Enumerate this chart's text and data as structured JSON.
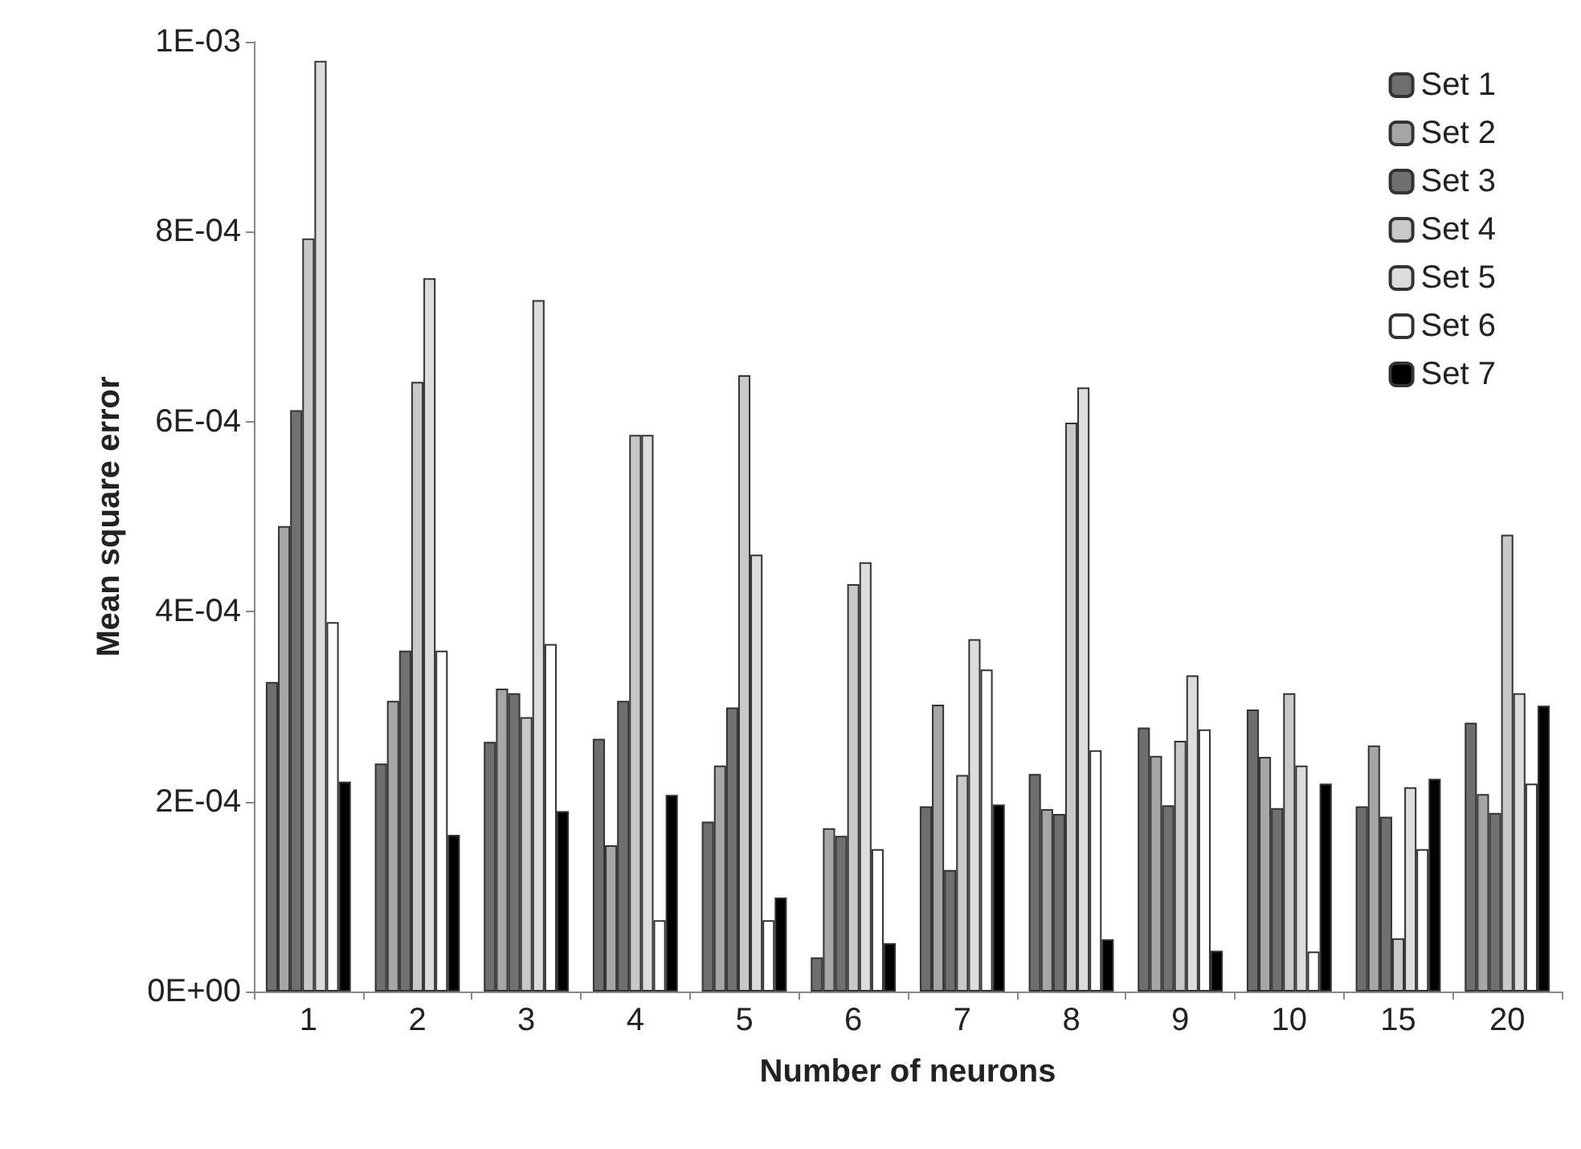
{
  "chart_data": {
    "type": "bar",
    "xlabel": "Number of neurons",
    "ylabel": "Mean square error",
    "categories": [
      "1",
      "2",
      "3",
      "4",
      "5",
      "6",
      "7",
      "8",
      "9",
      "10",
      "15",
      "20"
    ],
    "series": [
      {
        "name": "Set 1",
        "color": "#6e6e6e",
        "values": [
          0.000326,
          0.00024,
          0.000263,
          0.000266,
          0.000179,
          3.6e-05,
          0.000195,
          0.000229,
          0.000278,
          0.000297,
          0.000195,
          0.000283
        ]
      },
      {
        "name": "Set 2",
        "color": "#a6a6a6",
        "values": [
          0.00049,
          0.000306,
          0.000319,
          0.000154,
          0.000238,
          0.000172,
          0.000302,
          0.000192,
          0.000248,
          0.000247,
          0.000259,
          0.000208
        ]
      },
      {
        "name": "Set 3",
        "color": "#707070",
        "values": [
          0.000612,
          0.000359,
          0.000314,
          0.000306,
          0.000299,
          0.000164,
          0.000128,
          0.000187,
          0.000196,
          0.000193,
          0.000184,
          0.000188
        ]
      },
      {
        "name": "Set 4",
        "color": "#c8c8c8",
        "values": [
          0.000793,
          0.000642,
          0.000289,
          0.000586,
          0.000649,
          0.000429,
          0.000228,
          0.000599,
          0.000264,
          0.000314,
          5.6e-05,
          0.000481
        ]
      },
      {
        "name": "Set 5",
        "color": "#dcdcdc",
        "values": [
          0.00098,
          0.000751,
          0.000728,
          0.000586,
          0.00046,
          0.000452,
          0.000371,
          0.000636,
          0.000333,
          0.000238,
          0.000215,
          0.000314
        ]
      },
      {
        "name": "Set 6",
        "color": "#ffffff",
        "values": [
          0.000389,
          0.000359,
          0.000366,
          7.5e-05,
          7.5e-05,
          0.00015,
          0.000339,
          0.000254,
          0.000276,
          4.2e-05,
          0.00015,
          0.000219
        ]
      },
      {
        "name": "Set 7",
        "color": "#000000",
        "values": [
          0.000221,
          0.000165,
          0.00019,
          0.000207,
          9.9e-05,
          5.1e-05,
          0.000197,
          5.5e-05,
          4.3e-05,
          0.000219,
          0.000224,
          0.000301
        ]
      }
    ],
    "ylim": [
      0,
      0.001
    ],
    "yticks": [
      {
        "value": 0,
        "label": "0E+00"
      },
      {
        "value": 0.0002,
        "label": "2E-04"
      },
      {
        "value": 0.0004,
        "label": "4E-04"
      },
      {
        "value": 0.0006,
        "label": "6E-04"
      },
      {
        "value": 0.0008,
        "label": "8E-04"
      },
      {
        "value": 0.001,
        "label": "1E-03"
      }
    ],
    "legend": "top right"
  }
}
